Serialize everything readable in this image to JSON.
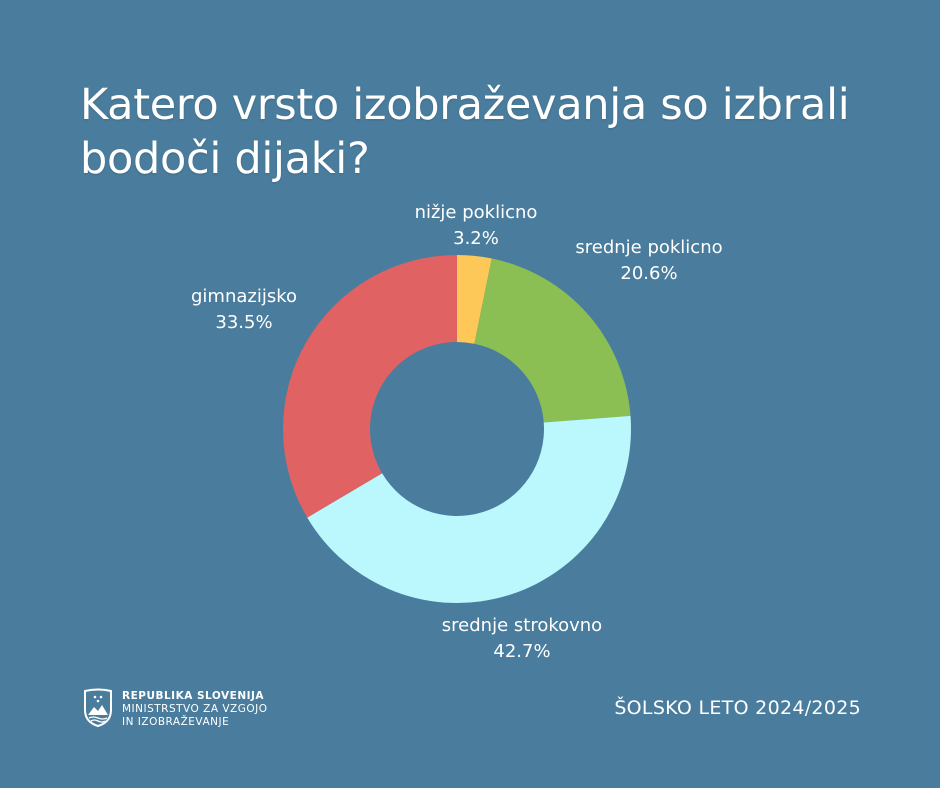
{
  "title": {
    "line1": "Katero vrsto izobraževanja so izbrali",
    "line2": "bodoči dijaki?"
  },
  "chart_data": {
    "type": "pie",
    "variant": "donut",
    "title": "Katero vrsto izobraževanja so izbrali bodoči dijaki?",
    "categories": [
      "nižje poklicno",
      "srednje poklicno",
      "srednje strokovno",
      "gimnazijsko"
    ],
    "values": [
      3.2,
      20.6,
      42.7,
      33.5
    ],
    "unit": "%",
    "colors": [
      "#fec859",
      "#8bbf53",
      "#bbf8fd",
      "#e06262"
    ],
    "start_angle": "12 o'clock, clockwise",
    "labels": [
      {
        "name": "nižje poklicno",
        "value": "3.2%"
      },
      {
        "name": "srednje poklicno",
        "value": "20.6%"
      },
      {
        "name": "srednje strokovno",
        "value": "42.7%"
      },
      {
        "name": "gimnazijsko",
        "value": "33.5%"
      }
    ]
  },
  "footer": {
    "logo_line1": "REPUBLIKA SLOVENIJA",
    "logo_line2": "MINISTRSTVO ZA VZGOJO",
    "logo_line3": "IN IZOBRAŽEVANJE",
    "school_year": "ŠOLSKO LETO 2024/2025"
  },
  "colors": {
    "background": "#4a7d9d",
    "text": "#ffffff"
  }
}
